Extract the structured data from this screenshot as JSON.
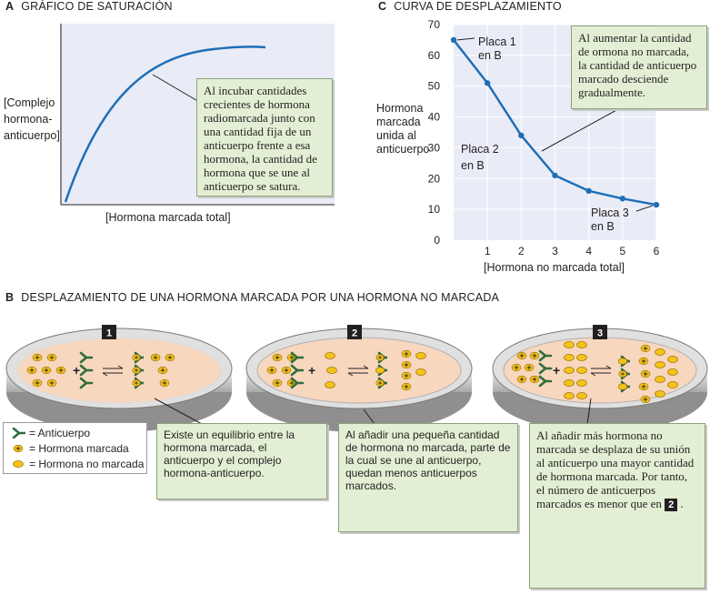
{
  "panel_a": {
    "letter": "A",
    "title": "GRÁFICO DE SATURACIÓN",
    "ylabel_lines": [
      "[Complejo",
      "hormona-",
      "anticuerpo]"
    ],
    "xlabel": "[Hormona marcada total]",
    "callout": "Al incubar cantidades crecientes de hormona radiomarcada junto con una cantidad fija de un anticuerpo frente a esa hormona, la cantidad de hormona que se une al anticuerpo se satura."
  },
  "panel_c": {
    "letter": "C",
    "title": "CURVA DE DESPLAZAMIENTO",
    "ylabel_lines": [
      "Hormona",
      "marcada",
      "unida al",
      "anticuerpo"
    ],
    "xlabel": "[Hormona no marcada total]",
    "yticks": [
      "70",
      "60",
      "50",
      "40",
      "30",
      "20",
      "10",
      "0"
    ],
    "xticks": [
      "1",
      "2",
      "3",
      "4",
      "5",
      "6"
    ],
    "labels": {
      "placa1_a": "Placa 1",
      "placa1_b": "en B",
      "placa2_a": "Placa 2",
      "placa2_b": "en B",
      "placa3_a": "Placa 3",
      "placa3_b": "en B"
    },
    "callout": "Al aumentar la cantidad de ormona no marcada, la cantidad de anticuerpo marcado desciende gradualmente."
  },
  "chart_data": {
    "type": "line",
    "x": [
      0,
      1,
      2,
      3,
      4,
      5,
      6
    ],
    "y": [
      65,
      51,
      34,
      21,
      16,
      13.5,
      11.5
    ],
    "xlim": [
      0,
      6
    ],
    "ylim": [
      0,
      70
    ],
    "grid": true
  },
  "panel_b": {
    "letter": "B",
    "title": "DESPLAZAMIENTO DE UNA HORMONA MARCADA POR UNA HORMONA NO MARCADA",
    "dish_numbers": [
      "1",
      "2",
      "3"
    ],
    "callout_1": "Existe un equilibrio entre la hormona marcada, el anticuerpo y el complejo hormona-anticuerpo.",
    "callout_2": "Al añadir una pequeña cantidad de hormona no marcada, parte de la cual se une al anticuerpo, quedan menos anticuerpos marcados.",
    "callout_3_text": "Al añadir más hormona no marcada se desplaza de su unión al anticuerpo una mayor cantidad de hormona marcada. Por tanto, el número de anticuerpos marcados es menor que en",
    "callout_3_badge": "2",
    "callout_3_end": ".",
    "legend": {
      "antibody": "= Anticuerpo",
      "labeled": "= Hormona marcada",
      "unlabeled": "= Hormona no marcada"
    }
  },
  "colors": {
    "curve": "#1f6fb8",
    "callout_bg": "#e3efd4",
    "dish_fill": "#f8d7bf",
    "antibody": "#2e6e3c",
    "hormone": "#f5c21a"
  }
}
